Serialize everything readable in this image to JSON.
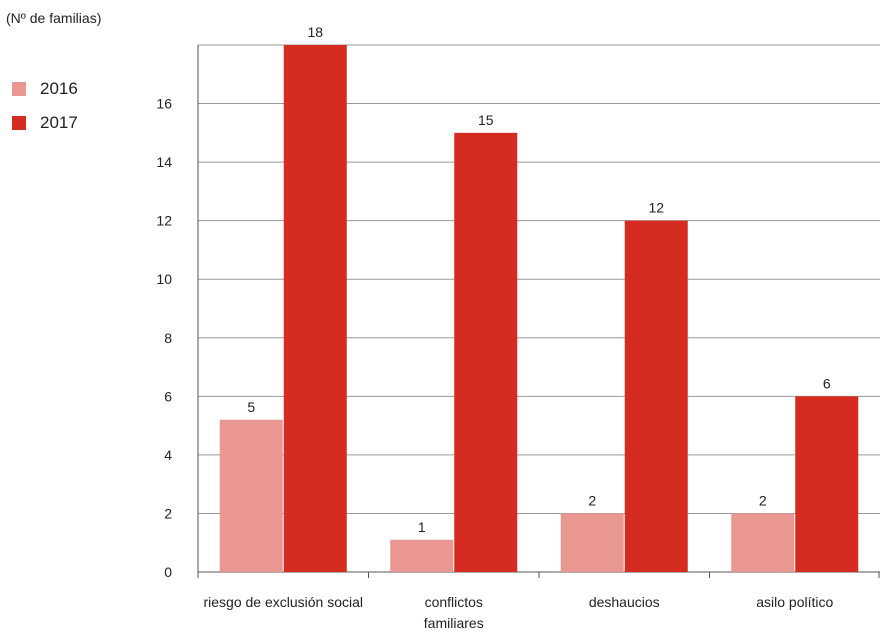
{
  "unit_label": "(Nº de familias)",
  "colors": {
    "2016": "#ea9792",
    "2017": "#d52b20"
  },
  "chart_data": {
    "type": "bar",
    "categories": [
      [
        "riesgo de exclusión social"
      ],
      [
        "conflictos",
        "familiares"
      ],
      [
        "deshaucios"
      ],
      [
        "asilo político"
      ]
    ],
    "series": [
      {
        "name": "2016",
        "values": [
          5.2,
          1.1,
          2,
          2
        ],
        "labels": [
          "5",
          "1",
          "2",
          "2"
        ]
      },
      {
        "name": "2017",
        "values": [
          18,
          15,
          12,
          6
        ],
        "labels": [
          "18",
          "15",
          "12",
          "6"
        ]
      }
    ],
    "ylim": [
      0,
      18
    ],
    "yticks": [
      0,
      2,
      4,
      6,
      8,
      10,
      12,
      14,
      16
    ],
    "ylabel": "(Nº de familias)",
    "grid": "horizontal",
    "legend": "left"
  }
}
